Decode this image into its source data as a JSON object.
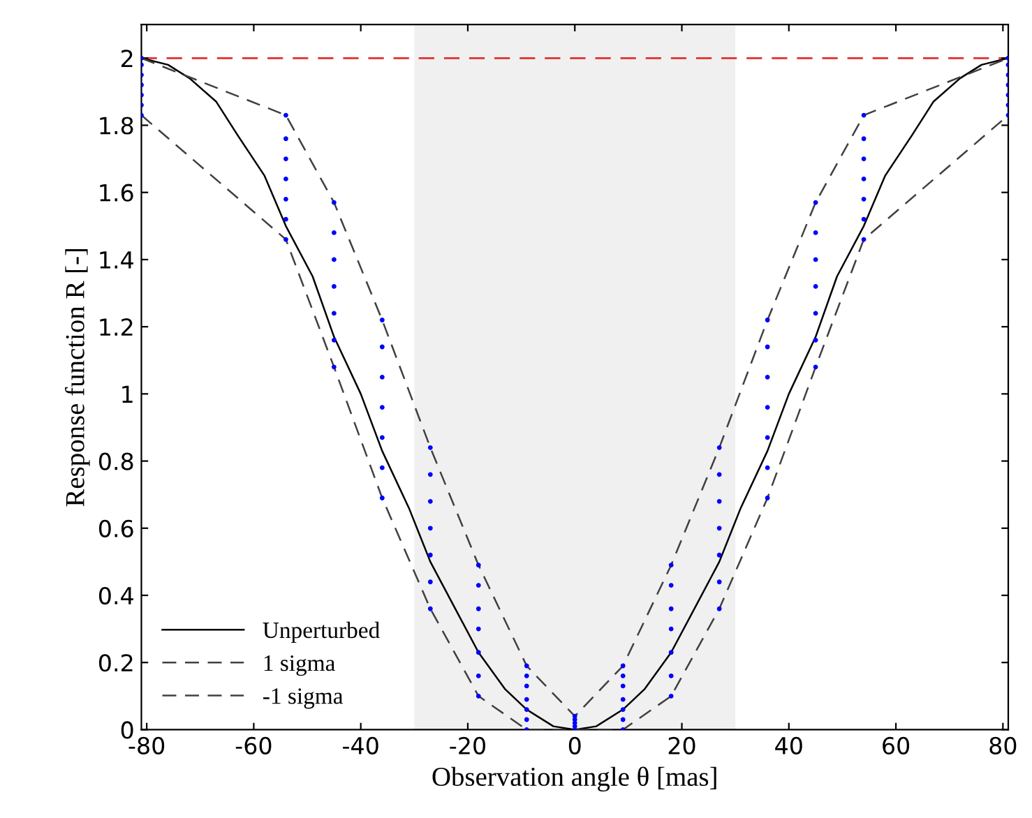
{
  "chart_data": {
    "type": "line",
    "xlabel": "Observation angle θ [mas]",
    "ylabel": "Response function R [-]",
    "xlim": [
      -81,
      81
    ],
    "ylim": [
      0,
      2.1
    ],
    "xticks": [
      -80,
      -60,
      -40,
      -20,
      0,
      20,
      40,
      60,
      80
    ],
    "yticks": [
      0,
      0.2,
      0.4,
      0.6,
      0.8,
      1,
      1.2,
      1.4,
      1.6,
      1.8,
      2
    ],
    "grid": false,
    "legend": "bottom left",
    "bands": [
      {
        "axis": "x",
        "from": -30,
        "to": 30,
        "color": "#f0f0f0"
      }
    ],
    "ref_lines": [
      {
        "axis": "y",
        "value": 2,
        "color": "#e03030",
        "line_style": "dashed"
      }
    ],
    "series": [
      {
        "name": "Unperturbed",
        "color": "#000000",
        "line_style": "solid",
        "marker": "none",
        "x": [
          -81,
          -76,
          -72,
          -67,
          -63,
          -58,
          -54,
          -49,
          -45,
          -40,
          -36,
          -31,
          -27,
          -22,
          -18,
          -13,
          -9,
          -4,
          0,
          4,
          9,
          13,
          18,
          22,
          27,
          31,
          36,
          40,
          45,
          49,
          54,
          58,
          63,
          67,
          72,
          76,
          81
        ],
        "values": [
          2,
          1.98,
          1.94,
          1.87,
          1.77,
          1.65,
          1.5,
          1.35,
          1.17,
          1,
          0.83,
          0.66,
          0.5,
          0.35,
          0.23,
          0.12,
          0.06,
          0.01,
          0,
          0.01,
          0.06,
          0.12,
          0.23,
          0.35,
          0.5,
          0.66,
          0.83,
          1,
          1.17,
          1.35,
          1.5,
          1.65,
          1.77,
          1.87,
          1.94,
          1.98,
          2
        ]
      },
      {
        "type": "scatter",
        "color": "#0000ff",
        "marker": "circle",
        "x": [
          -81,
          -81,
          -81,
          -81,
          -81,
          -81,
          -81,
          -54,
          -54,
          -54,
          -54,
          -54,
          -54,
          -54,
          -45,
          -45,
          -45,
          -45,
          -45,
          -45,
          -45,
          -36,
          -36,
          -36,
          -36,
          -36,
          -36,
          -36,
          -27,
          -27,
          -27,
          -27,
          -27,
          -27,
          -27,
          -18,
          -18,
          -18,
          -18,
          -18,
          -18,
          -18,
          -9,
          -9,
          -9,
          -9,
          -9,
          -9,
          -9,
          0,
          0,
          0,
          0,
          0,
          9,
          9,
          9,
          9,
          9,
          9,
          9,
          18,
          18,
          18,
          18,
          18,
          18,
          18,
          27,
          27,
          27,
          27,
          27,
          27,
          27,
          36,
          36,
          36,
          36,
          36,
          36,
          36,
          45,
          45,
          45,
          45,
          45,
          45,
          45,
          54,
          54,
          54,
          54,
          54,
          54,
          54,
          81,
          81,
          81,
          81,
          81,
          81,
          81
        ],
        "values": [
          1.83,
          1.86,
          1.89,
          1.92,
          1.95,
          1.98,
          2.0,
          1.46,
          1.52,
          1.58,
          1.64,
          1.7,
          1.76,
          1.83,
          1.08,
          1.16,
          1.24,
          1.32,
          1.4,
          1.48,
          1.57,
          0.69,
          0.78,
          0.87,
          0.96,
          1.05,
          1.14,
          1.22,
          0.36,
          0.44,
          0.52,
          0.6,
          0.68,
          0.76,
          0.84,
          0.1,
          0.16,
          0.23,
          0.3,
          0.36,
          0.43,
          0.49,
          0.0,
          0.03,
          0.06,
          0.09,
          0.13,
          0.16,
          0.19,
          0.0,
          0.01,
          0.02,
          0.03,
          0.04,
          0.0,
          0.03,
          0.06,
          0.09,
          0.13,
          0.16,
          0.19,
          0.1,
          0.16,
          0.23,
          0.3,
          0.36,
          0.43,
          0.49,
          0.36,
          0.44,
          0.52,
          0.6,
          0.68,
          0.76,
          0.84,
          0.69,
          0.78,
          0.87,
          0.96,
          1.05,
          1.14,
          1.22,
          1.08,
          1.16,
          1.24,
          1.32,
          1.4,
          1.48,
          1.57,
          1.46,
          1.52,
          1.58,
          1.64,
          1.7,
          1.76,
          1.83,
          1.83,
          1.86,
          1.89,
          1.92,
          1.95,
          1.98,
          2.0
        ]
      },
      {
        "name": "1 sigma",
        "color": "#404040",
        "line_style": "dashed",
        "marker": "none",
        "x": [
          -81,
          -54,
          -45,
          -36,
          -27,
          -18,
          -9,
          0,
          9,
          18,
          27,
          36,
          45,
          54,
          81
        ],
        "values": [
          2,
          1.83,
          1.57,
          1.22,
          0.84,
          0.49,
          0.19,
          0.04,
          0.19,
          0.49,
          0.84,
          1.22,
          1.57,
          1.83,
          2
        ]
      },
      {
        "name": "-1 sigma",
        "color": "#404040",
        "line_style": "dashed",
        "marker": "none",
        "x": [
          -81,
          -54,
          -45,
          -36,
          -27,
          -18,
          -9,
          0,
          9,
          18,
          27,
          36,
          45,
          54,
          81
        ],
        "values": [
          1.83,
          1.46,
          1.08,
          0.69,
          0.36,
          0.1,
          0,
          0,
          0,
          0.1,
          0.36,
          0.69,
          1.08,
          1.46,
          1.83
        ]
      }
    ]
  }
}
